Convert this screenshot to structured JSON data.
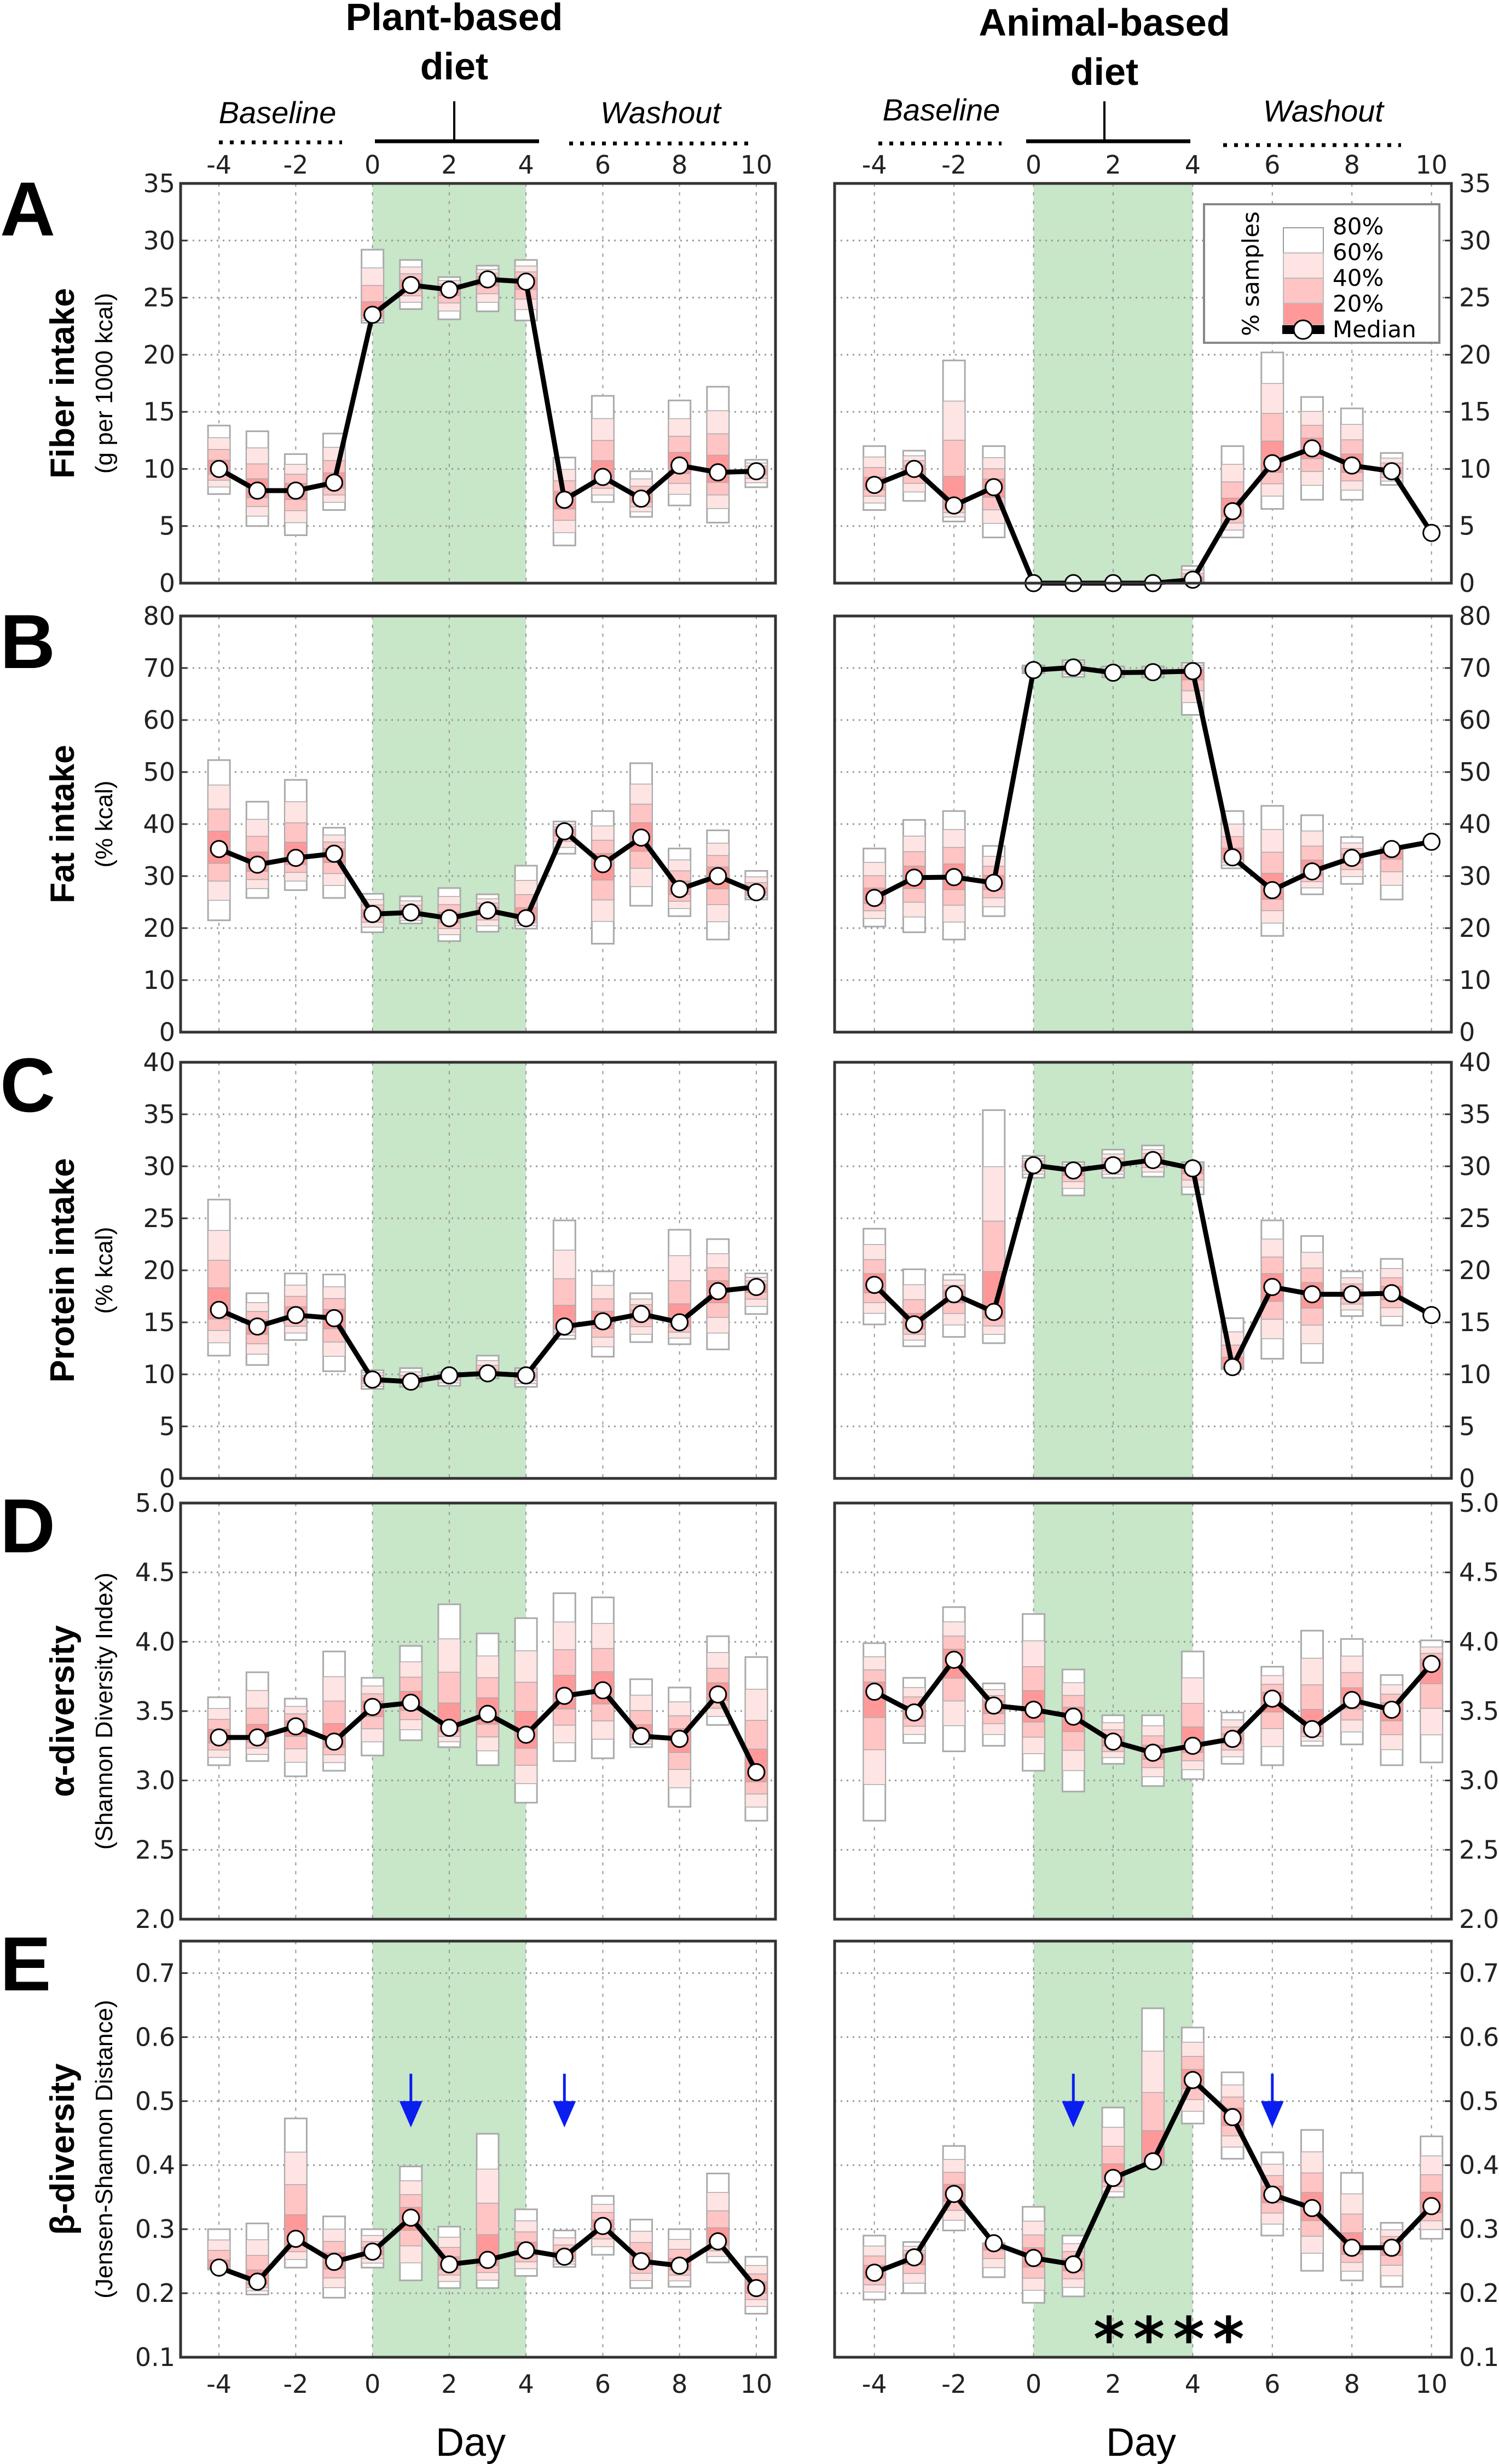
{
  "figure": {
    "diets": [
      {
        "title_line1": "Plant-based",
        "title_line2": "diet",
        "baseline_label": "Baseline",
        "washout_label": "Washout"
      },
      {
        "title_line1": "Animal-based",
        "title_line2": "diet",
        "baseline_label": "Baseline",
        "washout_label": "Washout"
      }
    ],
    "xlabel": "Day",
    "legend": {
      "title": "% samples",
      "entries": [
        "80%",
        "60%",
        "40%",
        "20%",
        "Median"
      ]
    },
    "colors": {
      "diet_period_shade": "#c8e6c8",
      "band_80": "#ffffff",
      "band_60": "#ffe4e4",
      "band_40": "#ffc4c4",
      "band_20": "#ff9999",
      "median_line": "#000000",
      "marker_fill": "#ffffff",
      "arrow": "#0a1ef0"
    }
  },
  "chart_data": [
    {
      "type": "line",
      "panel": "A",
      "diet": "Plant-based",
      "ylabel": "Fiber intake",
      "ylabel_sub": "(g per 1000 kcal)",
      "xlim": [
        -5,
        10.5
      ],
      "ylim": [
        0,
        35
      ],
      "xticks": [
        -4,
        -2,
        0,
        2,
        4,
        6,
        8,
        10
      ],
      "yticks": [
        0,
        5,
        10,
        15,
        20,
        25,
        30,
        35
      ],
      "diet_period": [
        0,
        4
      ],
      "grid": true,
      "x": [
        -4,
        -3,
        -2,
        -1,
        0,
        1,
        2,
        3,
        4,
        5,
        6,
        7,
        8,
        9,
        10
      ],
      "median": [
        10,
        8.1,
        8.1,
        8.8,
        23.5,
        26.1,
        25.7,
        26.6,
        26.4,
        7.3,
        9.3,
        7.4,
        10.3,
        9.7,
        9.8
      ],
      "range80": [
        [
          7.8,
          13.8
        ],
        [
          5.0,
          13.3
        ],
        [
          4.2,
          11.3
        ],
        [
          6.4,
          13.1
        ],
        [
          22.8,
          29.2
        ],
        [
          24.0,
          28.3
        ],
        [
          23.1,
          26.8
        ],
        [
          23.8,
          27.8
        ],
        [
          23.0,
          28.3
        ],
        [
          3.3,
          11.0
        ],
        [
          7.1,
          16.4
        ],
        [
          5.8,
          9.8
        ],
        [
          6.8,
          16.0
        ],
        [
          5.3,
          17.2
        ],
        [
          8.4,
          10.8
        ]
      ]
    },
    {
      "type": "line",
      "panel": "A",
      "diet": "Animal-based",
      "ylabel": "Fiber intake",
      "ylabel_sub": "(g per 1000 kcal)",
      "xlim": [
        -5,
        10.5
      ],
      "ylim": [
        0,
        35
      ],
      "xticks": [
        -4,
        -2,
        0,
        2,
        4,
        6,
        8,
        10
      ],
      "yticks": [
        0,
        5,
        10,
        15,
        20,
        25,
        30,
        35
      ],
      "diet_period": [
        0,
        4
      ],
      "grid": true,
      "x": [
        -4,
        -3,
        -2,
        -1,
        0,
        1,
        2,
        3,
        4,
        5,
        6,
        7,
        8,
        9,
        10
      ],
      "median": [
        8.6,
        10,
        6.8,
        8.4,
        0,
        0,
        0,
        0,
        0.3,
        6.3,
        10.5,
        11.8,
        10.3,
        9.8,
        4.4
      ],
      "range80": [
        [
          6.4,
          12.0
        ],
        [
          7.2,
          11.6
        ],
        [
          5.4,
          19.5
        ],
        [
          4.0,
          12.0
        ],
        [
          0,
          0
        ],
        [
          0,
          0
        ],
        [
          0,
          0
        ],
        [
          0,
          0
        ],
        [
          0,
          1.5
        ],
        [
          4.0,
          12.0
        ],
        [
          6.5,
          20.2
        ],
        [
          7.3,
          16.3
        ],
        [
          7.3,
          15.3
        ],
        [
          8.6,
          11.4
        ],
        [
          4.4,
          4.4
        ]
      ]
    },
    {
      "type": "line",
      "panel": "B",
      "diet": "Plant-based",
      "ylabel": "Fat intake",
      "ylabel_sub": "(% kcal)",
      "xlim": [
        -5,
        10.5
      ],
      "ylim": [
        0,
        80
      ],
      "xticks": [
        -4,
        -2,
        0,
        2,
        4,
        6,
        8,
        10
      ],
      "yticks": [
        0,
        10,
        20,
        30,
        40,
        50,
        60,
        70,
        80
      ],
      "diet_period": [
        0,
        4
      ],
      "grid": true,
      "x": [
        -4,
        -3,
        -2,
        -1,
        0,
        1,
        2,
        3,
        4,
        5,
        6,
        7,
        8,
        9,
        10
      ],
      "median": [
        35.2,
        32.2,
        33.5,
        34.3,
        22.7,
        23.0,
        21.9,
        23.4,
        21.9,
        38.6,
        32.3,
        37.4,
        27.5,
        30.0,
        26.9
      ],
      "range80": [
        [
          21.5,
          52.3
        ],
        [
          25.8,
          44.3
        ],
        [
          27.3,
          48.5
        ],
        [
          25.8,
          39.3
        ],
        [
          19.2,
          26.6
        ],
        [
          20.9,
          26.1
        ],
        [
          17.5,
          27.7
        ],
        [
          19.3,
          26.5
        ],
        [
          19.9,
          32.0
        ],
        [
          34.3,
          40.5
        ],
        [
          17.0,
          42.5
        ],
        [
          24.3,
          51.7
        ],
        [
          22.3,
          35.3
        ],
        [
          17.8,
          38.8
        ],
        [
          25.5,
          31.0
        ]
      ]
    },
    {
      "type": "line",
      "panel": "B",
      "diet": "Animal-based",
      "ylabel": "Fat intake",
      "ylabel_sub": "(% kcal)",
      "xlim": [
        -5,
        10.5
      ],
      "ylim": [
        0,
        80
      ],
      "xticks": [
        -4,
        -2,
        0,
        2,
        4,
        6,
        8,
        10
      ],
      "yticks": [
        0,
        10,
        20,
        30,
        40,
        50,
        60,
        70,
        80
      ],
      "diet_period": [
        0,
        4
      ],
      "grid": true,
      "x": [
        -4,
        -3,
        -2,
        -1,
        0,
        1,
        2,
        3,
        4,
        5,
        6,
        7,
        8,
        9,
        10
      ],
      "median": [
        25.8,
        29.7,
        29.8,
        28.7,
        69.6,
        70.1,
        69.1,
        69.2,
        69.4,
        33.6,
        27.3,
        30.9,
        33.5,
        35.2,
        36.6
      ],
      "range80": [
        [
          20.3,
          35.3
        ],
        [
          19.2,
          40.8
        ],
        [
          17.8,
          42.5
        ],
        [
          22.3,
          35.8
        ],
        [
          69.0,
          70.5
        ],
        [
          68.3,
          71.5
        ],
        [
          68.2,
          70.3
        ],
        [
          68.2,
          70.3
        ],
        [
          61.0,
          71.0
        ],
        [
          31.5,
          42.5
        ],
        [
          18.5,
          43.5
        ],
        [
          26.5,
          41.7
        ],
        [
          28.5,
          37.5
        ],
        [
          25.5,
          35.5
        ],
        [
          36.6,
          36.6
        ]
      ]
    },
    {
      "type": "line",
      "panel": "C",
      "diet": "Plant-based",
      "ylabel": "Protein intake",
      "ylabel_sub": "(% kcal)",
      "xlim": [
        -5,
        10.5
      ],
      "ylim": [
        0,
        40
      ],
      "xticks": [
        -4,
        -2,
        0,
        2,
        4,
        6,
        8,
        10
      ],
      "yticks": [
        0,
        5,
        10,
        15,
        20,
        25,
        30,
        35,
        40
      ],
      "diet_period": [
        0,
        4
      ],
      "grid": true,
      "x": [
        -4,
        -3,
        -2,
        -1,
        0,
        1,
        2,
        3,
        4,
        5,
        6,
        7,
        8,
        9,
        10
      ],
      "median": [
        16.2,
        14.6,
        15.7,
        15.4,
        9.5,
        9.3,
        9.9,
        10.1,
        9.9,
        14.6,
        15.1,
        15.8,
        15.0,
        18.0,
        18.4
      ],
      "range80": [
        [
          11.8,
          26.8
        ],
        [
          10.9,
          17.8
        ],
        [
          13.3,
          19.7
        ],
        [
          10.3,
          19.6
        ],
        [
          8.6,
          10.4
        ],
        [
          8.8,
          10.6
        ],
        [
          8.9,
          10.2
        ],
        [
          9.6,
          11.8
        ],
        [
          8.8,
          10.6
        ],
        [
          13.4,
          24.8
        ],
        [
          11.7,
          19.9
        ],
        [
          13.1,
          17.8
        ],
        [
          12.9,
          23.9
        ],
        [
          12.4,
          23.0
        ],
        [
          15.8,
          19.7
        ]
      ]
    },
    {
      "type": "line",
      "panel": "C",
      "diet": "Animal-based",
      "ylabel": "Protein intake",
      "ylabel_sub": "(% kcal)",
      "xlim": [
        -5,
        10.5
      ],
      "ylim": [
        0,
        40
      ],
      "xticks": [
        -4,
        -2,
        0,
        2,
        4,
        6,
        8,
        10
      ],
      "yticks": [
        0,
        5,
        10,
        15,
        20,
        25,
        30,
        35,
        40
      ],
      "diet_period": [
        0,
        4
      ],
      "grid": true,
      "x": [
        -4,
        -3,
        -2,
        -1,
        0,
        1,
        2,
        3,
        4,
        5,
        6,
        7,
        8,
        9,
        10
      ],
      "median": [
        18.6,
        14.8,
        17.7,
        16.0,
        30.1,
        29.6,
        30.1,
        30.6,
        29.8,
        10.7,
        18.4,
        17.7,
        17.7,
        17.8,
        15.7
      ],
      "range80": [
        [
          14.8,
          24.0
        ],
        [
          12.7,
          20.1
        ],
        [
          13.6,
          19.6
        ],
        [
          13.0,
          35.4
        ],
        [
          28.9,
          31.0
        ],
        [
          27.2,
          30.4
        ],
        [
          28.9,
          31.6
        ],
        [
          29.0,
          32.0
        ],
        [
          27.3,
          30.4
        ],
        [
          10.5,
          15.4
        ],
        [
          11.5,
          24.8
        ],
        [
          11.1,
          23.3
        ],
        [
          15.6,
          19.9
        ],
        [
          14.7,
          21.1
        ],
        [
          15.7,
          15.7
        ]
      ]
    },
    {
      "type": "line",
      "panel": "D",
      "diet": "Plant-based",
      "ylabel": "α-diversity",
      "ylabel_sub": "(Shannon Diversity Index)",
      "xlim": [
        -5,
        10.5
      ],
      "ylim": [
        2.0,
        5.0
      ],
      "xticks": [
        -4,
        -2,
        0,
        2,
        4,
        6,
        8,
        10
      ],
      "yticks": [
        2.0,
        2.5,
        3.0,
        3.5,
        4.0,
        4.5,
        5.0
      ],
      "diet_period": [
        0,
        4
      ],
      "grid": true,
      "x": [
        -4,
        -3,
        -2,
        -1,
        0,
        1,
        2,
        3,
        4,
        5,
        6,
        7,
        8,
        9,
        10
      ],
      "median": [
        3.31,
        3.31,
        3.39,
        3.28,
        3.53,
        3.56,
        3.38,
        3.48,
        3.33,
        3.61,
        3.65,
        3.32,
        3.3,
        3.62,
        3.06
      ],
      "range80": [
        [
          3.11,
          3.6
        ],
        [
          3.14,
          3.78
        ],
        [
          3.03,
          3.59
        ],
        [
          3.07,
          3.93
        ],
        [
          3.18,
          3.74
        ],
        [
          3.29,
          3.97
        ],
        [
          3.24,
          4.27
        ],
        [
          3.11,
          4.06
        ],
        [
          2.84,
          4.17
        ],
        [
          3.14,
          4.35
        ],
        [
          3.16,
          4.32
        ],
        [
          3.24,
          3.73
        ],
        [
          2.81,
          3.67
        ],
        [
          3.4,
          4.04
        ],
        [
          2.71,
          3.89
        ]
      ]
    },
    {
      "type": "line",
      "panel": "D",
      "diet": "Animal-based",
      "ylabel": "α-diversity",
      "ylabel_sub": "(Shannon Diversity Index)",
      "xlim": [
        -5,
        10.5
      ],
      "ylim": [
        2.0,
        5.0
      ],
      "xticks": [
        -4,
        -2,
        0,
        2,
        4,
        6,
        8,
        10
      ],
      "yticks": [
        2.0,
        2.5,
        3.0,
        3.5,
        4.0,
        4.5,
        5.0
      ],
      "diet_period": [
        0,
        4
      ],
      "grid": true,
      "x": [
        -4,
        -3,
        -2,
        -1,
        0,
        1,
        2,
        3,
        4,
        5,
        6,
        7,
        8,
        9,
        10
      ],
      "median": [
        3.64,
        3.49,
        3.87,
        3.54,
        3.51,
        3.46,
        3.28,
        3.2,
        3.25,
        3.3,
        3.59,
        3.37,
        3.58,
        3.51,
        3.84
      ],
      "range80": [
        [
          2.71,
          3.99
        ],
        [
          3.27,
          3.74
        ],
        [
          3.21,
          4.25
        ],
        [
          3.25,
          3.7
        ],
        [
          3.07,
          4.2
        ],
        [
          2.92,
          3.8
        ],
        [
          3.12,
          3.47
        ],
        [
          2.96,
          3.47
        ],
        [
          3.01,
          3.93
        ],
        [
          3.12,
          3.49
        ],
        [
          3.11,
          3.82
        ],
        [
          3.25,
          4.08
        ],
        [
          3.26,
          4.02
        ],
        [
          3.11,
          3.76
        ],
        [
          3.13,
          4.01
        ]
      ]
    },
    {
      "type": "line",
      "panel": "E",
      "diet": "Plant-based",
      "ylabel": "β-diversity",
      "ylabel_sub": "(Jensen-Shannon Distance)",
      "xlim": [
        -5,
        10.5
      ],
      "ylim": [
        0.1,
        0.75
      ],
      "xticks": [
        -4,
        -2,
        0,
        2,
        4,
        6,
        8,
        10
      ],
      "yticks": [
        0.1,
        0.2,
        0.3,
        0.4,
        0.5,
        0.6,
        0.7
      ],
      "diet_period": [
        0,
        4
      ],
      "grid": true,
      "x": [
        -4,
        -3,
        -2,
        -1,
        0,
        1,
        2,
        3,
        4,
        5,
        6,
        7,
        8,
        9,
        10
      ],
      "median": [
        0.24,
        0.218,
        0.285,
        0.249,
        0.265,
        0.318,
        0.245,
        0.252,
        0.267,
        0.257,
        0.305,
        0.25,
        0.243,
        0.281,
        0.208
      ],
      "range80": [
        [
          0.237,
          0.3
        ],
        [
          0.198,
          0.309
        ],
        [
          0.24,
          0.473
        ],
        [
          0.193,
          0.32
        ],
        [
          0.24,
          0.3
        ],
        [
          0.22,
          0.398
        ],
        [
          0.208,
          0.304
        ],
        [
          0.208,
          0.449
        ],
        [
          0.227,
          0.331
        ],
        [
          0.241,
          0.298
        ],
        [
          0.26,
          0.352
        ],
        [
          0.208,
          0.315
        ],
        [
          0.21,
          0.3
        ],
        [
          0.248,
          0.387
        ],
        [
          0.168,
          0.257
        ]
      ],
      "annotations": [
        {
          "type": "arrow",
          "x": 1
        },
        {
          "type": "arrow",
          "x": 5
        }
      ]
    },
    {
      "type": "line",
      "panel": "E",
      "diet": "Animal-based",
      "ylabel": "β-diversity",
      "ylabel_sub": "(Jensen-Shannon Distance)",
      "xlim": [
        -5,
        10.5
      ],
      "ylim": [
        0.1,
        0.75
      ],
      "xticks": [
        -4,
        -2,
        0,
        2,
        4,
        6,
        8,
        10
      ],
      "yticks": [
        0.1,
        0.2,
        0.3,
        0.4,
        0.5,
        0.6,
        0.7
      ],
      "diet_period": [
        0,
        4
      ],
      "grid": true,
      "x": [
        -4,
        -3,
        -2,
        -1,
        0,
        1,
        2,
        3,
        4,
        5,
        6,
        7,
        8,
        9,
        10
      ],
      "median": [
        0.232,
        0.256,
        0.355,
        0.278,
        0.255,
        0.245,
        0.38,
        0.406,
        0.533,
        0.475,
        0.354,
        0.333,
        0.271,
        0.271,
        0.336
      ],
      "range80": [
        [
          0.19,
          0.29
        ],
        [
          0.2,
          0.28
        ],
        [
          0.298,
          0.43
        ],
        [
          0.225,
          0.278
        ],
        [
          0.185,
          0.335
        ],
        [
          0.195,
          0.29
        ],
        [
          0.35,
          0.49
        ],
        [
          0.4,
          0.645
        ],
        [
          0.465,
          0.615
        ],
        [
          0.41,
          0.545
        ],
        [
          0.29,
          0.42
        ],
        [
          0.235,
          0.455
        ],
        [
          0.22,
          0.388
        ],
        [
          0.21,
          0.31
        ],
        [
          0.285,
          0.445
        ]
      ],
      "annotations": [
        {
          "type": "arrow",
          "x": 1
        },
        {
          "type": "arrow",
          "x": 6
        },
        {
          "type": "significance",
          "label": "*",
          "x": [
            2,
            3,
            4,
            5
          ]
        }
      ]
    }
  ]
}
